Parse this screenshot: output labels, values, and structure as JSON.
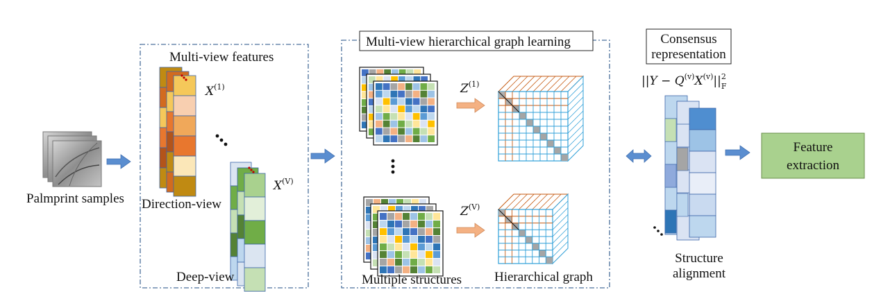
{
  "labels": {
    "palmprint_samples": "Palmprint samples",
    "multiview_features": "Multi-view features",
    "direction_view": "Direction-view",
    "deep_view": "Deep-view",
    "graph_learning_title": "Multi-view hierarchical graph learning",
    "multiple_structures": "Multiple structures",
    "hierarchical_graph": "Hierarchical graph",
    "consensus_line1": "Consensus",
    "consensus_line2": "representation",
    "structure_line1": "Structure",
    "structure_line2": "alignment",
    "feature_line1": "Feature",
    "feature_line2": "extraction"
  },
  "math": {
    "x1": "X",
    "x1_sup": "(1)",
    "xv": "X",
    "xv_sup": "(V)",
    "z1": "Z",
    "z1_sup": "(1)",
    "zv": "Z",
    "zv_sup": "(V)",
    "objective": "||Y − Q",
    "objective_sup1": "(v)",
    "objective_mid": "X",
    "objective_sup2": "(v)",
    "objective_end": "||",
    "objective_sup3": "2",
    "objective_sub": "F"
  },
  "colors": {
    "direction_palette": [
      "#f5c85a",
      "#f8cfb0",
      "#f0a85a",
      "#e8772e",
      "#fbe7b8",
      "#c08a12"
    ],
    "deep_palette": [
      "#a9d18e",
      "#e2efd9",
      "#70ad47",
      "#dbe5f1",
      "#c5e0b4"
    ],
    "matrix_palette": [
      "#9dc3e6",
      "#4472c4",
      "#ffc000",
      "#70ad47",
      "#a5a5a5",
      "#5b9bd5",
      "#c5e0b4",
      "#f4b183",
      "#bdd7ee",
      "#ffe699",
      "#548235",
      "#2e75b6",
      "#dae3f3"
    ],
    "feature_box": "#a9d18e",
    "arrow_blue": "#5b8ed0",
    "arrow_orange": "#f4b183",
    "graph_orange": "#c55a11",
    "graph_blue": "#2e9fd8"
  }
}
